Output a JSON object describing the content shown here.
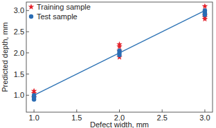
{
  "chart_data": {
    "type": "scatter",
    "x_label": "Defect width, mm",
    "y_label": "Predicted depth, mm",
    "xlim": [
      0.91,
      3.09
    ],
    "ylim": [
      0.6,
      3.2
    ],
    "xticks": [
      {
        "value": 1,
        "label": "1.0"
      },
      {
        "value": 1.5,
        "label": "1.5"
      },
      {
        "value": 2,
        "label": "2.0"
      },
      {
        "value": 2.5,
        "label": "2.5"
      },
      {
        "value": 3,
        "label": "3.0"
      }
    ],
    "yticks": [
      {
        "value": 1,
        "label": "1.0"
      },
      {
        "value": 1.5,
        "label": "1.5"
      },
      {
        "value": 2,
        "label": "2.0"
      },
      {
        "value": 2.5,
        "label": "2.5"
      },
      {
        "value": 3,
        "label": "3.0"
      }
    ],
    "legend": "upper left",
    "series": [
      {
        "name": "Training sample",
        "color": "#e3232c",
        "marker": "star",
        "x": [
          1,
          1,
          1,
          2,
          2,
          2,
          2,
          3,
          3,
          3,
          3
        ],
        "values": [
          1.1,
          1.05,
          0.95,
          2.2,
          2.15,
          1.9,
          2.05,
          3.1,
          2.9,
          2.85,
          2.8
        ]
      },
      {
        "name": "Test sample",
        "color": "#2a6cb3",
        "marker": "circle",
        "x": [
          1,
          1,
          1,
          2,
          2,
          2,
          3,
          3,
          3
        ],
        "values": [
          1.0,
          0.9,
          0.95,
          2.05,
          2.0,
          1.95,
          3.0,
          2.95,
          2.9
        ]
      },
      {
        "type": "line",
        "color": "#2f74b5",
        "line_style": "solid",
        "x": [
          1,
          3
        ],
        "values": [
          1,
          3
        ]
      }
    ]
  }
}
